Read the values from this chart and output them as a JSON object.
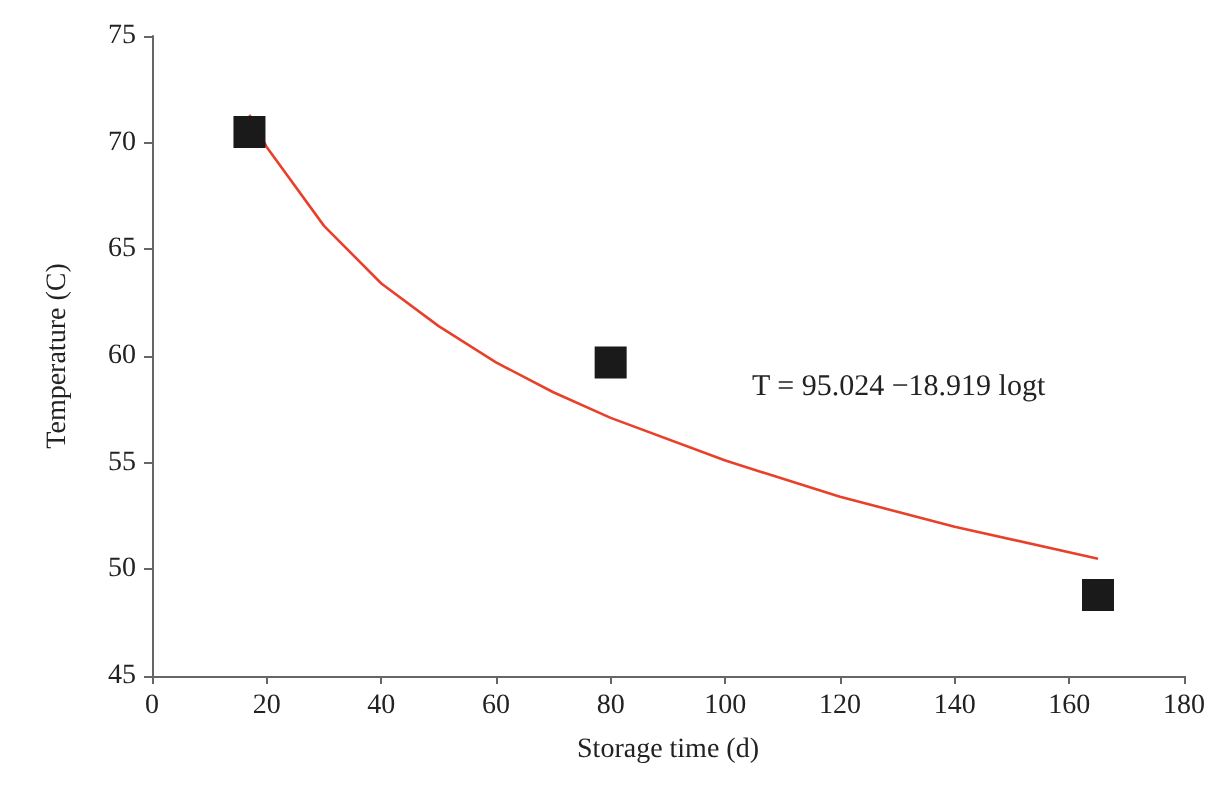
{
  "chart_data": {
    "type": "scatter",
    "xlabel": "Storage time (d)",
    "ylabel": "Temperature (C)",
    "xlim": [
      0,
      180
    ],
    "xticks": [
      0,
      20,
      40,
      60,
      80,
      100,
      120,
      140,
      160,
      180
    ],
    "ylim": [
      45,
      75
    ],
    "yticks": [
      45,
      50,
      55,
      60,
      65,
      70,
      75
    ],
    "grid": false,
    "annotations": [
      "T = 95.024 −18.919 logt"
    ],
    "series": [
      {
        "color": "#1a1a1a",
        "marker": "square",
        "x": [
          17,
          80,
          165
        ],
        "values": [
          70.5,
          59.7,
          48.8
        ]
      },
      {
        "type": "line",
        "color": "#e8402a",
        "marker": "none",
        "line_style": "solid",
        "x": [
          17,
          20,
          30,
          40,
          50,
          60,
          70,
          80,
          100,
          120,
          140,
          165
        ],
        "values": [
          71.3,
          69.8,
          66.1,
          63.4,
          61.4,
          59.7,
          58.3,
          57.1,
          55.1,
          53.4,
          52.0,
          50.5
        ]
      }
    ]
  }
}
